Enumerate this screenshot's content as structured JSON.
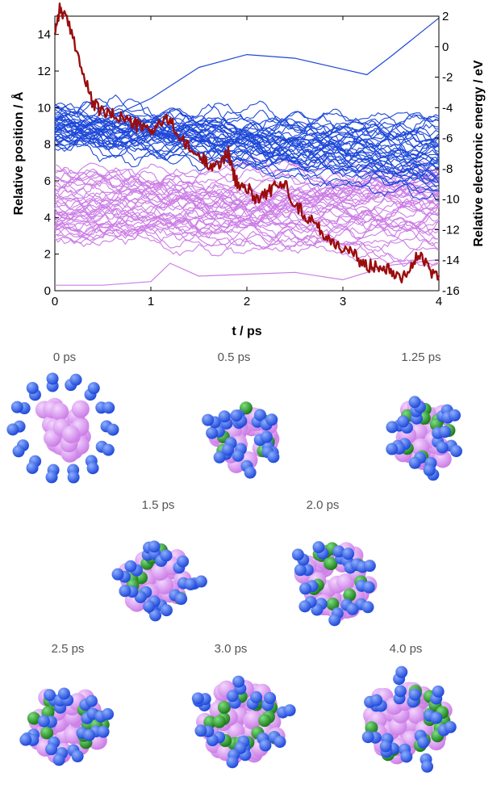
{
  "figure": {
    "snapshot_labels": [
      "0 ps",
      "0.5 ps",
      "1.25 ps",
      "1.5 ps",
      "2.0 ps",
      "2.5 ps",
      "3.0 ps",
      "4.0 ps"
    ]
  },
  "colors": {
    "energy": "#9b0d0d",
    "blue_atoms": "#1e48d8",
    "pink_atoms": "#cc7ee6",
    "green_atoms": "#1a7a1a"
  },
  "chart_data": {
    "type": "line",
    "xlabel": "t / ps",
    "ylabel_left": "Relative position / Å",
    "ylabel_right": "Relative electronic energy / eV",
    "xlim": [
      0,
      4
    ],
    "ylim_left": [
      0,
      15
    ],
    "ylim_right": [
      -16,
      2
    ],
    "xticks": [
      "0",
      "1",
      "2",
      "3",
      "4"
    ],
    "yticks_left": [
      "0",
      "2",
      "4",
      "6",
      "8",
      "10",
      "12",
      "14"
    ],
    "yticks_right": [
      "-16",
      "-14",
      "-12",
      "-10",
      "-8",
      "-6",
      "-4",
      "-2",
      "0",
      "2"
    ],
    "series_groups": {
      "blue": {
        "color": "#1e48d8",
        "axis": "left",
        "count": 40,
        "start_range": [
          7.8,
          10.0
        ],
        "end_range": [
          5.2,
          9.4
        ]
      },
      "pink": {
        "color": "#cc7ee6",
        "axis": "left",
        "count": 40,
        "start_range": [
          2.5,
          6.6
        ],
        "end_range": [
          1.7,
          6.8
        ]
      }
    },
    "series": [
      {
        "axis": "left",
        "color": "#1e48d8",
        "x": [
          0,
          0.5,
          1.0,
          1.5,
          2.0,
          2.5,
          3.0,
          3.25,
          3.5,
          4.0
        ],
        "y": [
          10.0,
          9.3,
          10.5,
          12.2,
          12.9,
          12.7,
          12.1,
          11.8,
          12.8,
          14.9
        ]
      },
      {
        "axis": "left",
        "color": "#cc7ee6",
        "x": [
          0,
          0.5,
          1.0,
          1.2,
          1.5,
          2.0,
          2.5,
          3.0,
          3.5,
          4.0
        ],
        "y": [
          0.3,
          0.3,
          0.5,
          1.5,
          0.8,
          0.9,
          1.0,
          0.6,
          1.4,
          1.7
        ]
      },
      {
        "axis": "right",
        "color": "#9b0d0d",
        "x": [
          0,
          0.05,
          0.1,
          0.2,
          0.3,
          0.4,
          0.5,
          0.6,
          0.7,
          0.8,
          0.9,
          1.0,
          1.1,
          1.2,
          1.3,
          1.4,
          1.5,
          1.6,
          1.7,
          1.8,
          1.85,
          1.9,
          2.0,
          2.1,
          2.2,
          2.3,
          2.4,
          2.5,
          2.6,
          2.7,
          2.8,
          2.9,
          3.0,
          3.1,
          3.2,
          3.3,
          3.4,
          3.5,
          3.6,
          3.7,
          3.8,
          3.9,
          4.0
        ],
        "y": [
          1.0,
          2.5,
          2.0,
          0.5,
          -2.0,
          -3.8,
          -4.3,
          -4.5,
          -4.6,
          -5.0,
          -5.3,
          -5.5,
          -5.0,
          -4.8,
          -6.0,
          -6.7,
          -7.2,
          -7.6,
          -7.9,
          -6.8,
          -8.2,
          -9.0,
          -9.3,
          -9.9,
          -9.6,
          -9.2,
          -9.0,
          -10.3,
          -11.0,
          -11.5,
          -12.3,
          -12.8,
          -13.2,
          -13.6,
          -14.2,
          -14.4,
          -14.3,
          -14.6,
          -15.1,
          -14.5,
          -13.6,
          -14.7,
          -15.0
        ]
      }
    ]
  }
}
